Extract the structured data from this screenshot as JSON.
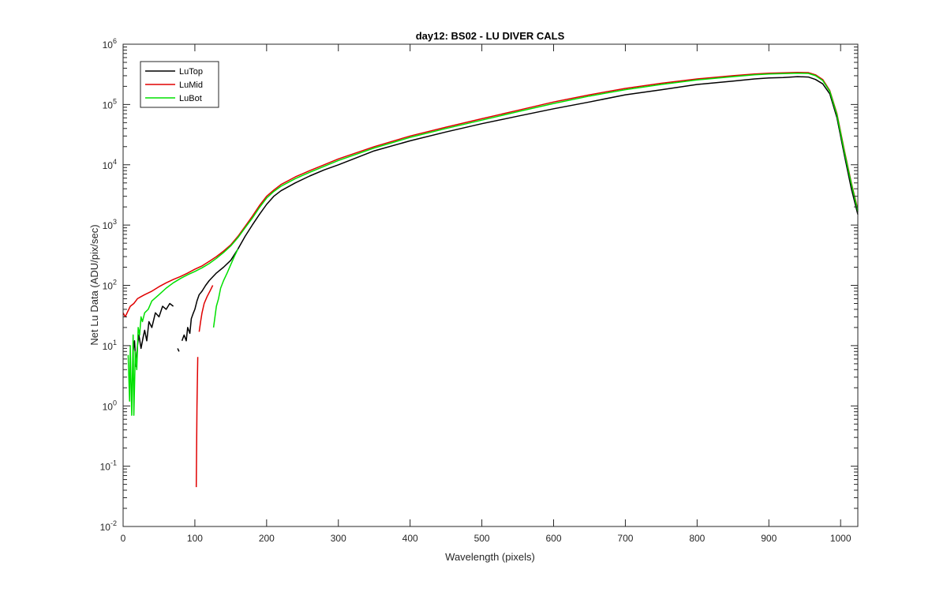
{
  "chart_data": {
    "type": "line",
    "title": "day12: BS02 - LU DIVER CALS",
    "xlabel": "Wavelength (pixels)",
    "ylabel": "Net Lu Data (ADU/pix/sec)",
    "xlim": [
      0,
      1024
    ],
    "ylim": [
      0.01,
      1000000
    ],
    "yscale": "log",
    "xticks": [
      0,
      100,
      200,
      300,
      400,
      500,
      600,
      700,
      800,
      900,
      1000
    ],
    "yticks": [
      {
        "value": 0.01,
        "base": "10",
        "exp": "-2"
      },
      {
        "value": 0.1,
        "base": "10",
        "exp": "-1"
      },
      {
        "value": 1,
        "base": "10",
        "exp": "0"
      },
      {
        "value": 10,
        "base": "10",
        "exp": "1"
      },
      {
        "value": 100,
        "base": "10",
        "exp": "2"
      },
      {
        "value": 1000,
        "base": "10",
        "exp": "3"
      },
      {
        "value": 10000,
        "base": "10",
        "exp": "4"
      },
      {
        "value": 100000,
        "base": "10",
        "exp": "5"
      },
      {
        "value": 1000000,
        "base": "10",
        "exp": "6"
      }
    ],
    "grid": false,
    "legend_position": "top-left",
    "series": [
      {
        "name": "LuTop",
        "color": "#000000",
        "segments": [
          [
            [
              14,
              8
            ],
            [
              16,
              12
            ],
            [
              18,
              4.5
            ],
            [
              20,
              10
            ],
            [
              22,
              15
            ],
            [
              25,
              9
            ],
            [
              28,
              14
            ],
            [
              30,
              18
            ],
            [
              33,
              12
            ],
            [
              36,
              25
            ],
            [
              40,
              20
            ],
            [
              45,
              35
            ],
            [
              50,
              30
            ],
            [
              55,
              45
            ],
            [
              60,
              40
            ],
            [
              65,
              50
            ],
            [
              70,
              45
            ]
          ],
          [
            [
              76,
              9
            ],
            [
              78,
              8
            ]
          ],
          [
            [
              82,
              12
            ],
            [
              85,
              15
            ],
            [
              88,
              12
            ],
            [
              90,
              20
            ],
            [
              93,
              16
            ],
            [
              95,
              28
            ],
            [
              98,
              35
            ],
            [
              100,
              40
            ],
            [
              103,
              55
            ],
            [
              106,
              70
            ],
            [
              110,
              80
            ],
            [
              115,
              100
            ],
            [
              120,
              120
            ],
            [
              130,
              160
            ],
            [
              140,
              200
            ],
            [
              150,
              260
            ],
            [
              160,
              400
            ],
            [
              170,
              650
            ],
            [
              180,
              1000
            ],
            [
              190,
              1500
            ],
            [
              200,
              2200
            ],
            [
              210,
              3000
            ],
            [
              220,
              3700
            ],
            [
              240,
              5000
            ],
            [
              260,
              6500
            ],
            [
              280,
              8200
            ],
            [
              300,
              10000
            ],
            [
              350,
              17000
            ],
            [
              400,
              25000
            ],
            [
              450,
              35000
            ],
            [
              500,
              48000
            ],
            [
              550,
              64000
            ],
            [
              600,
              85000
            ],
            [
              650,
              110000
            ],
            [
              700,
              145000
            ],
            [
              750,
              175000
            ],
            [
              800,
              215000
            ],
            [
              850,
              245000
            ],
            [
              880,
              265000
            ],
            [
              900,
              275000
            ],
            [
              920,
              280000
            ],
            [
              940,
              290000
            ],
            [
              955,
              285000
            ],
            [
              965,
              260000
            ],
            [
              975,
              220000
            ],
            [
              985,
              150000
            ],
            [
              995,
              60000
            ],
            [
              1005,
              15000
            ],
            [
              1015,
              4000
            ],
            [
              1024,
              1500
            ]
          ]
        ]
      },
      {
        "name": "LuMid",
        "color": "#e00000",
        "segments": [
          [
            [
              0,
              35
            ],
            [
              3,
              30
            ],
            [
              6,
              36
            ],
            [
              10,
              45
            ],
            [
              15,
              50
            ],
            [
              20,
              60
            ],
            [
              25,
              65
            ],
            [
              30,
              70
            ],
            [
              40,
              80
            ],
            [
              50,
              95
            ],
            [
              60,
              110
            ],
            [
              70,
              125
            ],
            [
              80,
              140
            ],
            [
              90,
              160
            ],
            [
              100,
              185
            ],
            [
              110,
              210
            ],
            [
              120,
              250
            ],
            [
              130,
              300
            ],
            [
              140,
              370
            ],
            [
              150,
              470
            ],
            [
              160,
              650
            ],
            [
              170,
              950
            ],
            [
              180,
              1400
            ],
            [
              190,
              2100
            ],
            [
              200,
              3000
            ],
            [
              210,
              3800
            ],
            [
              220,
              4700
            ],
            [
              240,
              6300
            ],
            [
              260,
              8000
            ],
            [
              280,
              10000
            ],
            [
              300,
              12500
            ],
            [
              350,
              20000
            ],
            [
              400,
              30000
            ],
            [
              450,
              42000
            ],
            [
              500,
              58000
            ],
            [
              550,
              80000
            ],
            [
              600,
              110000
            ],
            [
              650,
              145000
            ],
            [
              700,
              185000
            ],
            [
              750,
              225000
            ],
            [
              800,
              265000
            ],
            [
              850,
              300000
            ],
            [
              880,
              320000
            ],
            [
              900,
              330000
            ],
            [
              920,
              335000
            ],
            [
              940,
              340000
            ],
            [
              955,
              338000
            ],
            [
              965,
              310000
            ],
            [
              975,
              260000
            ],
            [
              985,
              170000
            ],
            [
              995,
              70000
            ],
            [
              1005,
              18000
            ],
            [
              1015,
              5000
            ],
            [
              1024,
              1800
            ]
          ],
          [
            [
              102,
              0.045
            ],
            [
              103,
              1
            ],
            [
              104,
              6.5
            ]
          ],
          [
            [
              106,
              17
            ],
            [
              108,
              25
            ],
            [
              110,
              35
            ],
            [
              113,
              50
            ],
            [
              117,
              65
            ],
            [
              121,
              80
            ],
            [
              125,
              100
            ]
          ]
        ]
      },
      {
        "name": "LuBot",
        "color": "#00e000",
        "segments": [
          [
            [
              7,
              7
            ],
            [
              9,
              1.2
            ],
            [
              10,
              10
            ],
            [
              12,
              0.7
            ],
            [
              14,
              15
            ],
            [
              15,
              0.7
            ],
            [
              17,
              8
            ],
            [
              19,
              4
            ],
            [
              21,
              20
            ],
            [
              23,
              15
            ],
            [
              25,
              30
            ],
            [
              27,
              25
            ],
            [
              30,
              35
            ],
            [
              35,
              40
            ],
            [
              40,
              55
            ],
            [
              50,
              70
            ],
            [
              60,
              90
            ],
            [
              70,
              110
            ],
            [
              80,
              130
            ],
            [
              90,
              150
            ],
            [
              100,
              170
            ],
            [
              110,
              195
            ],
            [
              120,
              230
            ],
            [
              130,
              280
            ],
            [
              140,
              350
            ],
            [
              150,
              450
            ],
            [
              160,
              620
            ],
            [
              170,
              900
            ],
            [
              180,
              1300
            ],
            [
              190,
              1950
            ],
            [
              200,
              2800
            ],
            [
              210,
              3600
            ],
            [
              220,
              4400
            ],
            [
              240,
              5900
            ],
            [
              260,
              7500
            ],
            [
              280,
              9400
            ],
            [
              300,
              11800
            ],
            [
              350,
              19000
            ],
            [
              400,
              28500
            ],
            [
              450,
              40000
            ],
            [
              500,
              55000
            ],
            [
              550,
              76000
            ],
            [
              600,
              104000
            ],
            [
              650,
              138000
            ],
            [
              700,
              176000
            ],
            [
              750,
              215000
            ],
            [
              800,
              255000
            ],
            [
              850,
              290000
            ],
            [
              880,
              310000
            ],
            [
              900,
              320000
            ],
            [
              920,
              325000
            ],
            [
              940,
              330000
            ],
            [
              955,
              328000
            ],
            [
              965,
              300000
            ],
            [
              975,
              250000
            ],
            [
              985,
              165000
            ],
            [
              995,
              67000
            ],
            [
              1005,
              17000
            ],
            [
              1015,
              4800
            ],
            [
              1024,
              1700
            ]
          ],
          [
            [
              126,
              20
            ],
            [
              128,
              30
            ],
            [
              130,
              45
            ],
            [
              133,
              60
            ],
            [
              136,
              90
            ],
            [
              140,
              120
            ],
            [
              145,
              160
            ],
            [
              150,
              220
            ],
            [
              155,
              300
            ],
            [
              160,
              400
            ]
          ]
        ]
      }
    ]
  }
}
